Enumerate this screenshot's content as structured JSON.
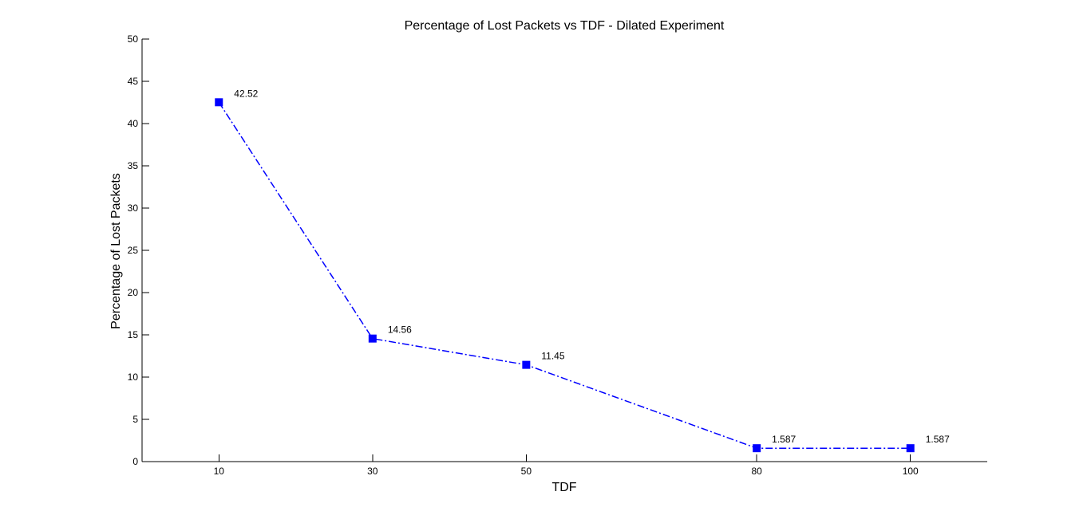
{
  "chart_data": {
    "type": "line",
    "title": "Percentage of Lost Packets vs TDF - Dilated Experiment",
    "xlabel": "TDF",
    "ylabel": "Percentage of Lost Packets",
    "x_ticks": [
      10,
      30,
      50,
      80,
      100
    ],
    "x_tick_labels": [
      "10",
      "30",
      "50",
      "80",
      "100"
    ],
    "xlim": [
      0,
      110
    ],
    "y_ticks": [
      0,
      5,
      10,
      15,
      20,
      25,
      30,
      35,
      40,
      45,
      50
    ],
    "y_tick_labels": [
      "0",
      "5",
      "10",
      "15",
      "20",
      "25",
      "30",
      "35",
      "40",
      "45",
      "50"
    ],
    "ylim": [
      0,
      50
    ],
    "grid": false,
    "legend": "none",
    "series": [
      {
        "color": "#0000ff",
        "line_style": "dash-dot",
        "marker": "square",
        "x": [
          10,
          30,
          50,
          80,
          100
        ],
        "y": [
          42.52,
          14.56,
          11.45,
          1.587,
          1.587
        ],
        "labels": [
          "42.52",
          "14.56",
          "11.45",
          "1.587",
          "1.587"
        ]
      }
    ]
  }
}
